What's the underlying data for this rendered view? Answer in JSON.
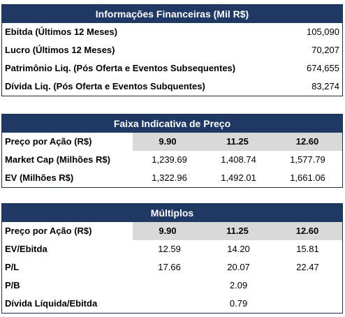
{
  "financeiras": {
    "title": "Informações Financeiras (Mil R$)",
    "rows": [
      {
        "label": "Ebitda (Últimos 12 Meses)",
        "value": "105,090"
      },
      {
        "label": "Lucro (Últimos 12 Meses)",
        "value": "70,207"
      },
      {
        "label": "Patrimônio Liq. (Pós Oferta e Eventos Subsequentes)",
        "value": "674,655"
      },
      {
        "label": "Dívida Liq. (Pós Oferta e Eventos Subquentes)",
        "value": "83,274"
      }
    ]
  },
  "faixa": {
    "title": "Faixa Indicativa de Preço",
    "price_label": "Preço por Ação (R$)",
    "prices": [
      "9.90",
      "11.25",
      "12.60"
    ],
    "rows": [
      {
        "label": "Market Cap (Milhões R$)",
        "values": [
          "1,239.69",
          "1,408.74",
          "1,577.79"
        ]
      },
      {
        "label": "EV (Milhões R$)",
        "values": [
          "1,322.96",
          "1,492.01",
          "1,661.06"
        ]
      }
    ]
  },
  "multiplos": {
    "title": "Múltiplos",
    "price_label": "Preço por Ação (R$)",
    "prices": [
      "9.90",
      "11.25",
      "12.60"
    ],
    "rows": [
      {
        "label": "EV/Ebitda",
        "values": [
          "12.59",
          "14.20",
          "15.81"
        ]
      },
      {
        "label": "P/L",
        "values": [
          "17.66",
          "20.07",
          "22.47"
        ]
      },
      {
        "label": "P/B",
        "values": [
          "",
          "2.09",
          ""
        ]
      },
      {
        "label": "Dívida Líquida/Ebitda",
        "values": [
          "",
          "0.79",
          ""
        ]
      }
    ]
  }
}
